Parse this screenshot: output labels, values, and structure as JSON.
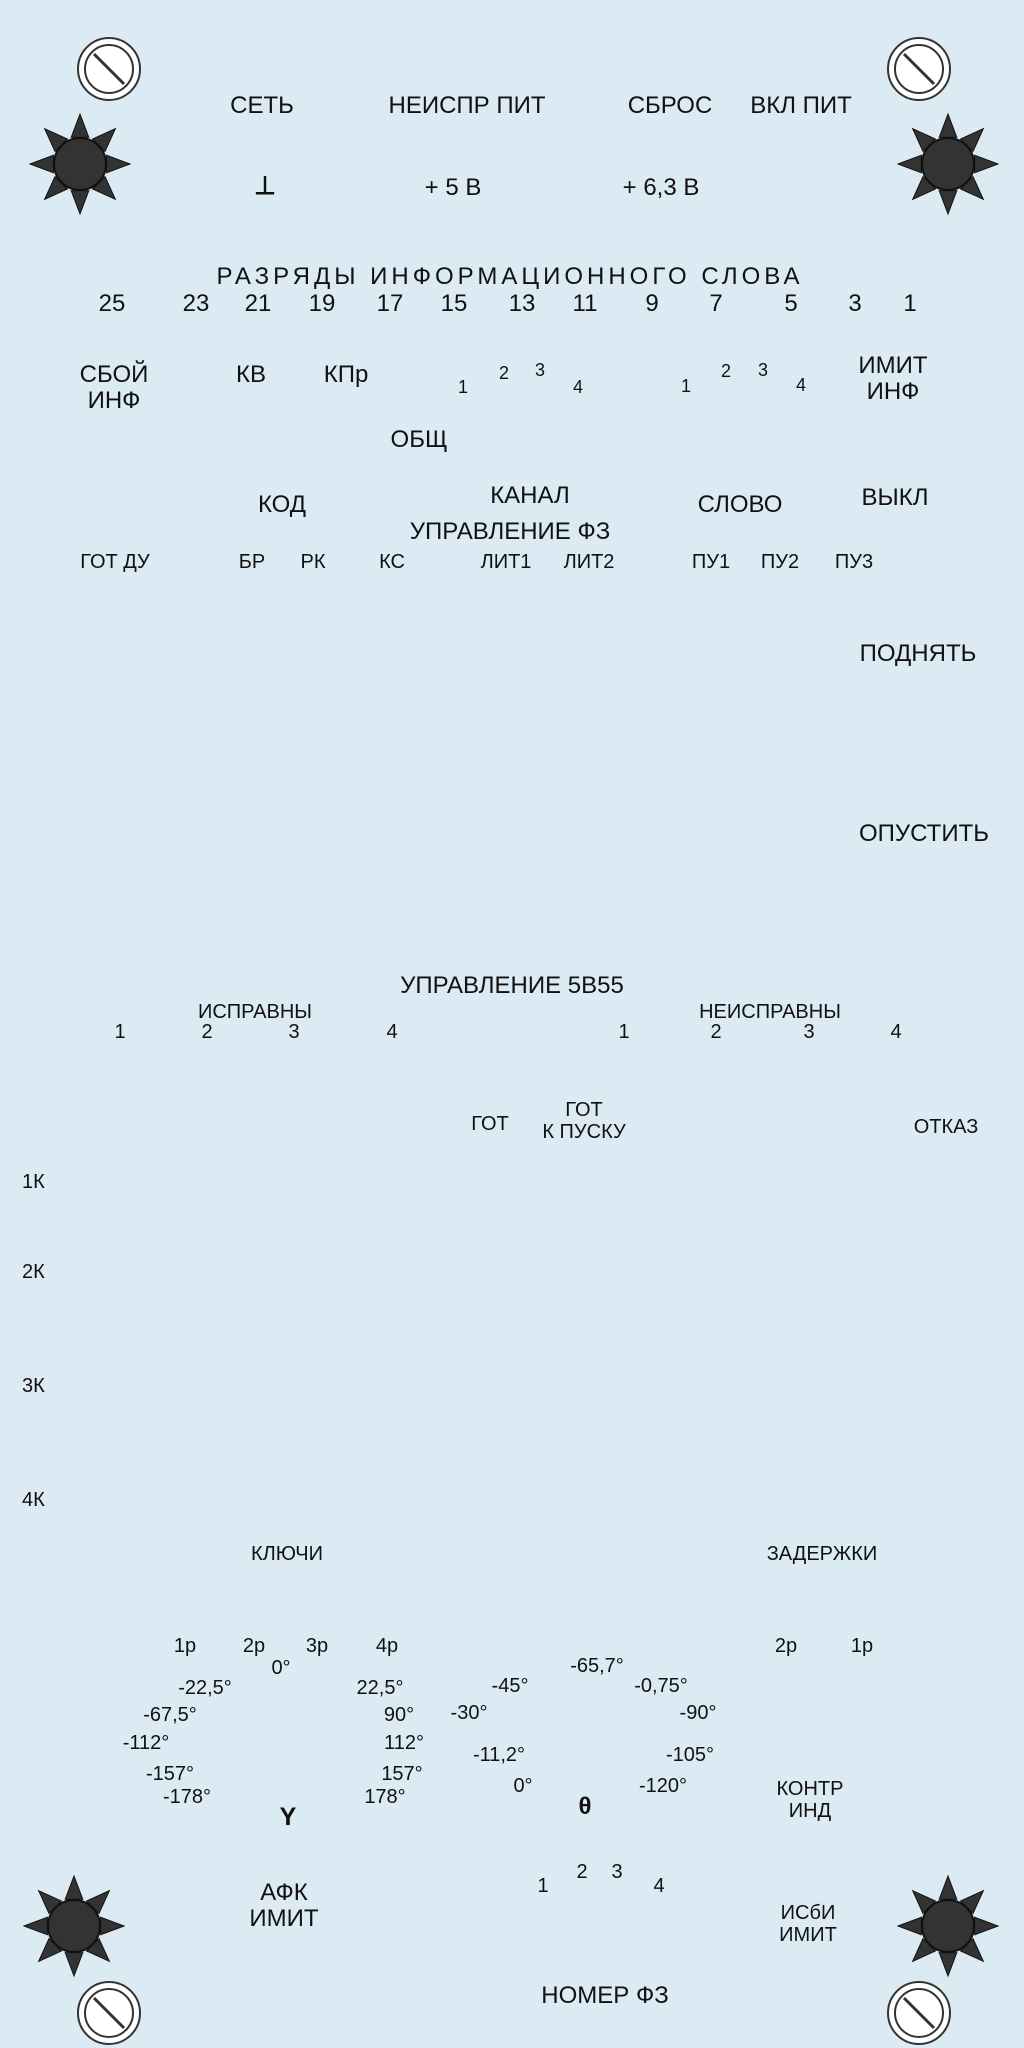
{
  "colors": {
    "background": "#dbeaf3",
    "knob": "#333333",
    "text": "#111111"
  },
  "icons": {
    "corner_knob": "sun-knob-icon",
    "corner_screw": "slot-screw-icon"
  },
  "power": {
    "net": "СЕТЬ",
    "fault_power": "НЕИСПР ПИТ",
    "reset": "СБРОС",
    "power_on": "ВКЛ ПИТ",
    "ground": "⊥",
    "v5": "+ 5 В",
    "v63": "+ 6,3 В"
  },
  "bits": {
    "title": "РАЗРЯДЫ ИНФОРМАЦИОННОГО СЛОВА",
    "numbers": [
      "25",
      "23",
      "21",
      "19",
      "17",
      "15",
      "13",
      "11",
      "9",
      "7",
      "5",
      "3",
      "1"
    ]
  },
  "info": {
    "fail": "СБОЙ\nИНФ",
    "kv": "КВ",
    "kpr": "КПр",
    "group1": [
      "1",
      "2",
      "3",
      "4"
    ],
    "group2": [
      "1",
      "2",
      "3",
      "4"
    ],
    "imit": "ИМИТ\nИНФ",
    "common": "ОБЩ"
  },
  "control_row": {
    "code": "КОД",
    "channel": "КАНАЛ",
    "word": "СЛОВО",
    "off": "ВЫКЛ",
    "fz_control": "УПРАВЛЕНИЕ ФЗ"
  },
  "fz_labels": [
    "ГОТ ДУ",
    "БР",
    "РК",
    "КС",
    "ЛИТ1",
    "ЛИТ2",
    "ПУ1",
    "ПУ2",
    "ПУ3"
  ],
  "lift": {
    "raise": "ПОДНЯТЬ",
    "lower": "ОПУСТИТЬ"
  },
  "control5v55": {
    "title": "УПРАВЛЕНИЕ 5В55",
    "ok": "ИСПРАВНЫ",
    "faulty": "НЕИСПРАВНЫ",
    "ok_numbers": [
      "1",
      "2",
      "3",
      "4"
    ],
    "faulty_numbers": [
      "1",
      "2",
      "3",
      "4"
    ],
    "ready": "ГОТ",
    "ready_launch": "ГОТ\nК ПУСКУ",
    "fail": "ОТКАЗ",
    "rows": [
      "1К",
      "2К",
      "3К",
      "4К"
    ]
  },
  "keys": {
    "title": "КЛЮЧИ",
    "delays": "ЗАДЕРЖКИ"
  },
  "gamma_dial": {
    "positions": [
      "1р",
      "2р",
      "3р",
      "4р"
    ],
    "angles": [
      "0°",
      "-22,5°",
      "22,5°",
      "-67,5°",
      "90°",
      "-112°",
      "112°",
      "-157°",
      "157°",
      "-178°",
      "178°"
    ],
    "symbol": "Υ"
  },
  "theta_dial": {
    "angles": [
      "-65,7°",
      "-45°",
      "-0,75°",
      "-30°",
      "-90°",
      "-11,2°",
      "-105°",
      "0°",
      "-120°"
    ],
    "symbol": "θ"
  },
  "delay_positions": [
    "2р",
    "1р"
  ],
  "bottom": {
    "contr_ind": "КОНТР\nИНД",
    "afk_imit": "АФК\nИМИТ",
    "fz_numbers": [
      "1",
      "2",
      "3",
      "4"
    ],
    "isbi_imit": "ИСбИ\nИМИТ",
    "fz_number": "НОМЕР ФЗ"
  }
}
